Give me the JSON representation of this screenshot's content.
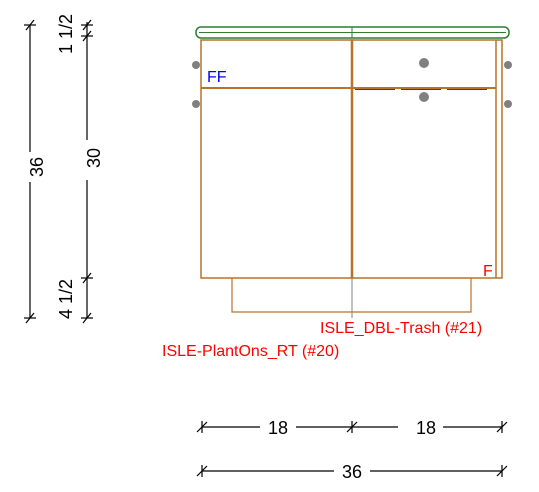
{
  "dimensions": {
    "left_total": "36",
    "left_top": "1 1/2",
    "left_mid": "30",
    "left_bottom": "4 1/2",
    "bottom_left": "18",
    "bottom_right": "18",
    "bottom_total": "36"
  },
  "labels": {
    "ff_mark": "FF",
    "f_mark": "F",
    "trash_label": "ISLE_DBL-Trash (#21)",
    "planton_label": "ISLE-PlantOns_RT (#20)"
  },
  "colors": {
    "cabinet_outline": "#b8732a",
    "countertop": "#2e7d32",
    "label_red": "#ff0000",
    "label_blue": "#0000ff",
    "hardware": "#808080"
  }
}
